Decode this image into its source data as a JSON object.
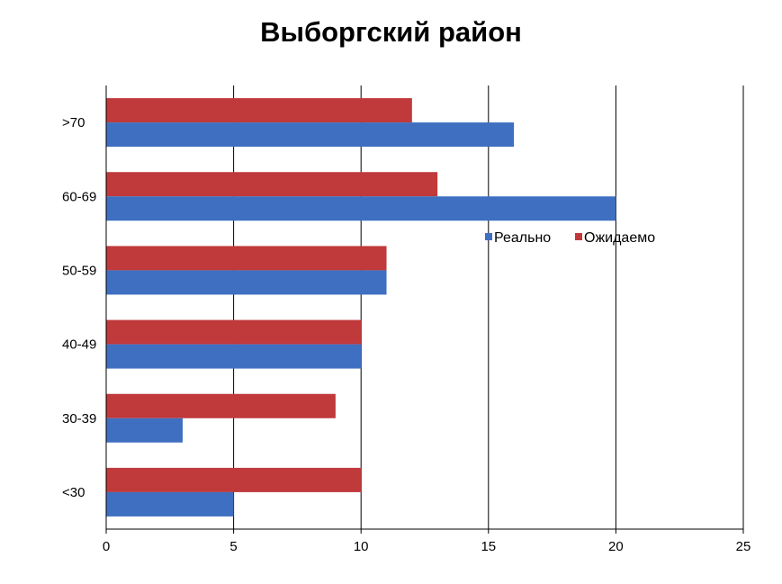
{
  "chart_data": {
    "type": "bar",
    "orientation": "horizontal",
    "title": "Выборгский район",
    "xlabel": "",
    "ylabel": "",
    "categories": [
      "<30",
      "30-39",
      "40-49",
      "50-59",
      "60-69",
      ">70"
    ],
    "series": [
      {
        "name": "Реально",
        "color": "#3e6fc1",
        "values": [
          5,
          3,
          10,
          11,
          20,
          16
        ]
      },
      {
        "name": "Ожидаемо",
        "color": "#c0393b",
        "values": [
          10,
          9,
          10,
          11,
          13,
          12
        ]
      }
    ],
    "xlim": [
      0,
      25
    ],
    "xticks": [
      0,
      5,
      10,
      15,
      20,
      25
    ],
    "grid": "vertical",
    "legend_position": "right-center"
  }
}
